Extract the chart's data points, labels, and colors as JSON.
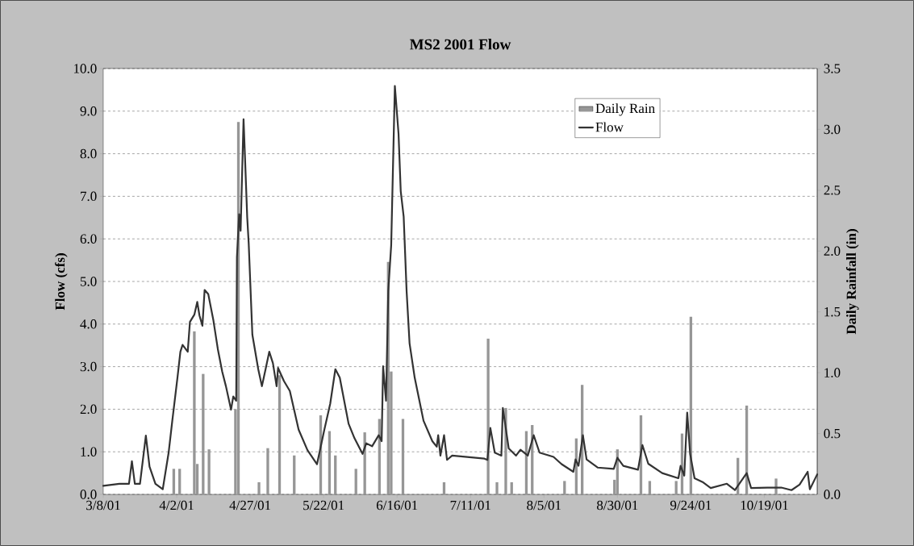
{
  "chart_data": {
    "type": "line",
    "title": "MS2 2001 Flow",
    "ylabel": "Flow (cfs)",
    "y2label": "Daily Rainfall (in)",
    "xlim": [
      "2001-03-08",
      "2001-11-06"
    ],
    "xticks": [
      {
        "value": "2001-03-08",
        "label": "3/8/01"
      },
      {
        "value": "2001-04-02",
        "label": "4/2/01"
      },
      {
        "value": "2001-04-27",
        "label": "4/27/01"
      },
      {
        "value": "2001-05-22",
        "label": "5/22/01"
      },
      {
        "value": "2001-06-16",
        "label": "6/16/01"
      },
      {
        "value": "2001-07-11",
        "label": "7/11/01"
      },
      {
        "value": "2001-08-05",
        "label": "8/5/01"
      },
      {
        "value": "2001-08-30",
        "label": "8/30/01"
      },
      {
        "value": "2001-09-24",
        "label": "9/24/01"
      },
      {
        "value": "2001-10-19",
        "label": "10/19/01"
      }
    ],
    "ylim": [
      0,
      10
    ],
    "yticks": [
      {
        "value": 0,
        "label": "0.0"
      },
      {
        "value": 1,
        "label": "1.0"
      },
      {
        "value": 2,
        "label": "2.0"
      },
      {
        "value": 3,
        "label": "3.0"
      },
      {
        "value": 4,
        "label": "4.0"
      },
      {
        "value": 5,
        "label": "5.0"
      },
      {
        "value": 6,
        "label": "6.0"
      },
      {
        "value": 7,
        "label": "7.0"
      },
      {
        "value": 8,
        "label": "8.0"
      },
      {
        "value": 9,
        "label": "9.0"
      },
      {
        "value": 10,
        "label": "10.0"
      }
    ],
    "y2lim": [
      0,
      3.5
    ],
    "y2ticks": [
      {
        "value": 0,
        "label": "0.0"
      },
      {
        "value": 0.5,
        "label": "0.5"
      },
      {
        "value": 1,
        "label": "1.0"
      },
      {
        "value": 1.5,
        "label": "1.5"
      },
      {
        "value": 2,
        "label": "2.0"
      },
      {
        "value": 2.5,
        "label": "2.5"
      },
      {
        "value": 3,
        "label": "3.0"
      },
      {
        "value": 3.5,
        "label": "3.5"
      }
    ],
    "grid": "y",
    "legend": "top right",
    "series": [
      {
        "name": "Daily Rain",
        "type": "bar",
        "axis": "y2",
        "color": "#969696",
        "x": [
          "2001-04-01",
          "2001-04-03",
          "2001-04-08",
          "2001-04-09",
          "2001-04-11",
          "2001-04-13",
          "2001-04-22",
          "2001-04-23",
          "2001-04-30",
          "2001-05-03",
          "2001-05-07",
          "2001-05-12",
          "2001-05-21",
          "2001-05-24",
          "2001-05-26",
          "2001-06-02",
          "2001-06-05",
          "2001-06-10",
          "2001-06-13",
          "2001-06-14",
          "2001-06-18",
          "2001-07-02",
          "2001-07-17",
          "2001-07-20",
          "2001-07-23",
          "2001-07-25",
          "2001-07-30",
          "2001-08-01",
          "2001-08-12",
          "2001-08-16",
          "2001-08-18",
          "2001-08-29",
          "2001-08-30",
          "2001-09-07",
          "2001-09-10",
          "2001-09-19",
          "2001-09-21",
          "2001-09-24",
          "2001-10-10",
          "2001-10-13",
          "2001-10-23"
        ],
        "values": [
          0.21,
          0.21,
          1.34,
          0.25,
          0.99,
          0.37,
          0.7,
          3.06,
          0.1,
          0.38,
          0.98,
          0.32,
          0.65,
          0.52,
          0.32,
          0.21,
          0.51,
          0.62,
          1.91,
          1.01,
          0.62,
          0.1,
          1.28,
          0.1,
          0.71,
          0.1,
          0.52,
          0.57,
          0.11,
          0.46,
          0.9,
          0.12,
          0.37,
          0.65,
          0.11,
          0.11,
          0.5,
          1.46,
          0.3,
          0.73,
          0.13
        ]
      },
      {
        "name": "Flow",
        "color": "#333333",
        "x": [
          "2001-03-08T00:00",
          "2001-03-13T12:00",
          "2001-03-16T18:00",
          "2001-03-17T18:00",
          "2001-03-18T18:00",
          "2001-03-20T12:00",
          "2001-03-22T12:00",
          "2001-03-23T18:00",
          "2001-03-25T18:00",
          "2001-03-28T06:00",
          "2001-03-30T06:00",
          "2001-03-31T12:00",
          "2001-04-02T06:00",
          "2001-04-03T06:00",
          "2001-04-04T00:00",
          "2001-04-05T18:00",
          "2001-04-06T12:00",
          "2001-04-08T00:00",
          "2001-04-09T00:00",
          "2001-04-09T18:00",
          "2001-04-10T18:00",
          "2001-04-11T12:00",
          "2001-04-12T18:00",
          "2001-04-14T12:00",
          "2001-04-16T00:00",
          "2001-04-17T12:00",
          "2001-04-18T18:00",
          "2001-04-20T12:00",
          "2001-04-21T06:00",
          "2001-04-22T06:00",
          "2001-04-22T12:00",
          "2001-04-23T06:00",
          "2001-04-23T18:00",
          "2001-04-24T18:00",
          "2001-04-25T06:00",
          "2001-04-26T00:00",
          "2001-04-26T12:00",
          "2001-04-27T18:00",
          "2001-04-29T18:00",
          "2001-05-01T00:00",
          "2001-05-02T06:00",
          "2001-05-03T12:00",
          "2001-05-04T18:00",
          "2001-05-06T00:00",
          "2001-05-06T12:00",
          "2001-05-08T12:00",
          "2001-05-10T12:00",
          "2001-05-13T12:00",
          "2001-05-16T12:00",
          "2001-05-19T18:00",
          "2001-05-22T06:00",
          "2001-05-24T06:00",
          "2001-05-26T00:00",
          "2001-05-27T12:00",
          "2001-05-30T12:00",
          "2001-06-01T12:00",
          "2001-06-04T06:00",
          "2001-06-05T12:00",
          "2001-06-07T12:00",
          "2001-06-09T18:00",
          "2001-06-10T18:00",
          "2001-06-11T06:00",
          "2001-06-12T06:00",
          "2001-06-13T00:00",
          "2001-06-14T00:00",
          "2001-06-15T06:00",
          "2001-06-16T12:00",
          "2001-06-17T06:00",
          "2001-06-18T06:00",
          "2001-06-19T06:00",
          "2001-06-20T06:00",
          "2001-06-22T00:00",
          "2001-06-25T00:00",
          "2001-06-28T00:00",
          "2001-06-29T12:00",
          "2001-06-30T00:00",
          "2001-06-30T18:00",
          "2001-07-02T00:00",
          "2001-07-03T00:00",
          "2001-07-04T18:00",
          "2001-07-15T18:00",
          "2001-07-16T18:00",
          "2001-07-17T18:00",
          "2001-07-19T06:00",
          "2001-07-21T12:00",
          "2001-07-22T00:00",
          "2001-07-24T00:00",
          "2001-07-26T12:00",
          "2001-07-28T00:00",
          "2001-07-30T12:00",
          "2001-08-01T12:00",
          "2001-08-03T12:00",
          "2001-08-08T06:00",
          "2001-08-11T00:00",
          "2001-08-15T00:00",
          "2001-08-15T18:00",
          "2001-08-16T18:00",
          "2001-08-18T06:00",
          "2001-08-19T12:00",
          "2001-08-23T06:00",
          "2001-08-28T18:00",
          "2001-08-30T00:00",
          "2001-09-01T00:00",
          "2001-09-06T00:00",
          "2001-09-07T12:00",
          "2001-09-09T12:00",
          "2001-09-14T06:00",
          "2001-09-19T18:00",
          "2001-09-20T12:00",
          "2001-09-21T18:00",
          "2001-09-22T18:00",
          "2001-09-23T18:00",
          "2001-09-25T06:00",
          "2001-09-28T00:00",
          "2001-09-30T18:00",
          "2001-10-06T06:00",
          "2001-10-09T00:00",
          "2001-10-13T00:00",
          "2001-10-14T12:00",
          "2001-10-20T00:00",
          "2001-10-24T18:00",
          "2001-10-28T06:00",
          "2001-10-31T00:00",
          "2001-11-02T18:00",
          "2001-11-03T12:00",
          "2001-11-05T12:00",
          "2001-11-06T00:00"
        ],
        "values": [
          0.2,
          0.25,
          0.25,
          0.78,
          0.25,
          0.25,
          1.38,
          0.65,
          0.25,
          0.12,
          0.98,
          1.73,
          2.74,
          3.35,
          3.51,
          3.35,
          4.05,
          4.22,
          4.52,
          4.2,
          3.96,
          4.8,
          4.7,
          4.08,
          3.41,
          2.88,
          2.54,
          1.99,
          2.3,
          2.2,
          5.57,
          6.58,
          6.19,
          8.81,
          7.9,
          6.5,
          5.9,
          3.75,
          2.94,
          2.54,
          2.94,
          3.35,
          3.08,
          2.54,
          2.97,
          2.66,
          2.43,
          1.52,
          1.04,
          0.71,
          1.52,
          2.13,
          2.94,
          2.74,
          1.66,
          1.32,
          0.95,
          1.2,
          1.13,
          1.39,
          1.25,
          3.01,
          2.2,
          4.77,
          5.85,
          9.59,
          8.47,
          7.12,
          6.52,
          4.77,
          3.55,
          2.74,
          1.73,
          1.25,
          1.12,
          1.39,
          0.91,
          1.39,
          0.81,
          0.91,
          0.84,
          0.81,
          1.56,
          0.98,
          0.91,
          2.03,
          1.08,
          0.91,
          1.05,
          0.91,
          1.39,
          0.98,
          0.88,
          0.71,
          0.53,
          0.82,
          0.67,
          1.39,
          0.82,
          0.63,
          0.6,
          0.86,
          0.67,
          0.58,
          1.16,
          0.72,
          0.5,
          0.38,
          0.67,
          0.44,
          1.92,
          0.95,
          0.38,
          0.29,
          0.15,
          0.25,
          0.1,
          0.5,
          0.15,
          0.16,
          0.16,
          0.1,
          0.23,
          0.53,
          0.12,
          0.4,
          0.47
        ]
      }
    ]
  }
}
